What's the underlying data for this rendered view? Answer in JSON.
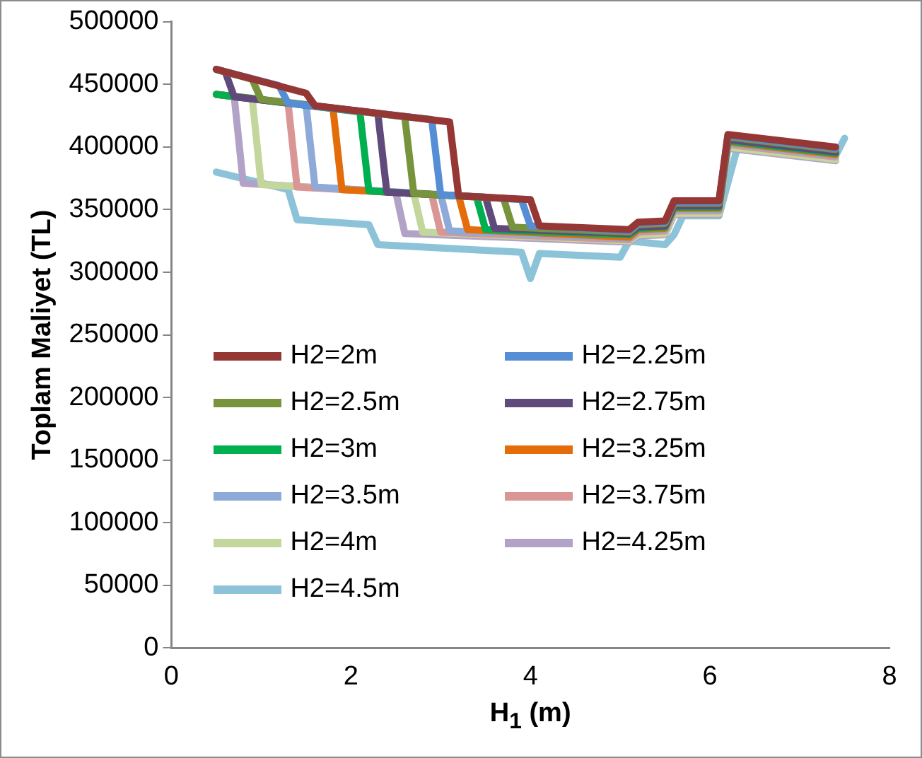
{
  "chart_data": {
    "type": "line",
    "xlabel": "H$_{1}$ (m)",
    "ylabel": "Toplam Maliyet (TL)",
    "xlim": [
      0,
      8
    ],
    "xticks": [
      0,
      2,
      4,
      6,
      8
    ],
    "ylim": [
      0,
      500000
    ],
    "yticks": [
      0,
      50000,
      100000,
      150000,
      200000,
      250000,
      300000,
      350000,
      400000,
      450000,
      500000
    ],
    "grid": false,
    "legend": "bottom left",
    "marker": "none",
    "line_style": "solid",
    "series": [
      {
        "name": "H2=2m",
        "color": "#953735",
        "x": [
          0.5,
          1.5,
          1.6,
          3.1,
          3.2,
          4.0,
          4.1,
          5.1,
          5.2,
          5.5,
          5.6,
          6.1,
          6.2,
          7.4
        ],
        "values": [
          462000,
          443000,
          433000,
          420000,
          361000,
          358000,
          337000,
          334000,
          340000,
          341000,
          357000,
          357000,
          410000,
          400000
        ]
      },
      {
        "name": "H2=2.25m",
        "color": "#558ed5",
        "x": [
          0.5,
          1.2,
          1.3,
          2.9,
          3.0,
          3.9,
          4.0,
          5.1,
          5.2,
          5.5,
          5.6,
          6.1,
          6.2,
          7.4
        ],
        "values": [
          462000,
          449000,
          435000,
          422000,
          362000,
          358000,
          337000,
          333000,
          339000,
          340000,
          356000,
          356000,
          409000,
          399000
        ]
      },
      {
        "name": "H2=2.5m",
        "color": "#77933c",
        "x": [
          0.5,
          0.9,
          1.0,
          2.6,
          2.7,
          3.7,
          3.8,
          5.1,
          5.2,
          5.5,
          5.6,
          6.1,
          6.2,
          7.4
        ],
        "values": [
          462000,
          454000,
          438000,
          424000,
          363000,
          359000,
          336000,
          332000,
          338000,
          339000,
          355000,
          355000,
          408000,
          398000
        ]
      },
      {
        "name": "H2=2.75m",
        "color": "#604a7b",
        "x": [
          0.5,
          0.6,
          0.7,
          2.3,
          2.4,
          3.5,
          3.6,
          5.1,
          5.2,
          5.5,
          5.6,
          6.1,
          6.2,
          7.4
        ],
        "values": [
          462000,
          460000,
          440000,
          427000,
          364000,
          360000,
          335000,
          331000,
          336000,
          337000,
          353000,
          353000,
          406000,
          396000
        ]
      },
      {
        "name": "H2=3m",
        "color": "#00b050",
        "x": [
          0.5,
          2.1,
          2.2,
          3.4,
          3.5,
          5.1,
          5.2,
          5.5,
          5.6,
          6.1,
          6.2,
          7.4
        ],
        "values": [
          442000,
          428000,
          365000,
          360000,
          334000,
          330000,
          335000,
          336000,
          352000,
          352000,
          405000,
          395000
        ]
      },
      {
        "name": "H2=3.25m",
        "color": "#e46c0a",
        "x": [
          0.5,
          1.8,
          1.9,
          3.2,
          3.3,
          5.1,
          5.2,
          5.5,
          5.6,
          6.1,
          6.2,
          7.4
        ],
        "values": [
          442000,
          431000,
          366000,
          361000,
          334000,
          328000,
          334000,
          335000,
          351000,
          351000,
          404000,
          394000
        ]
      },
      {
        "name": "H2=3.5m",
        "color": "#8eaad8",
        "x": [
          0.5,
          1.5,
          1.6,
          3.0,
          3.1,
          5.1,
          5.2,
          5.5,
          5.6,
          6.1,
          6.2,
          7.4
        ],
        "values": [
          442000,
          434000,
          368000,
          362000,
          333000,
          327000,
          333000,
          334000,
          350000,
          350000,
          403000,
          393000
        ]
      },
      {
        "name": "H2=3.75m",
        "color": "#d99694",
        "x": [
          0.5,
          1.3,
          1.4,
          2.9,
          3.0,
          5.1,
          5.2,
          5.5,
          5.6,
          6.1,
          6.2,
          7.4
        ],
        "values": [
          442000,
          435000,
          368000,
          362000,
          332000,
          326000,
          332000,
          333000,
          349000,
          349000,
          402000,
          392000
        ]
      },
      {
        "name": "H2=4m",
        "color": "#c3d69b",
        "x": [
          0.5,
          0.9,
          1.0,
          2.7,
          2.8,
          5.1,
          5.2,
          5.5,
          5.6,
          6.1,
          6.2,
          7.4
        ],
        "values": [
          442000,
          439000,
          370000,
          363000,
          332000,
          325000,
          330000,
          331000,
          347000,
          347000,
          400000,
          390000
        ]
      },
      {
        "name": "H2=4.25m",
        "color": "#b3a2c7",
        "x": [
          0.5,
          0.7,
          0.8,
          2.5,
          2.6,
          5.1,
          5.2,
          5.5,
          5.6,
          6.1,
          6.2,
          7.4
        ],
        "values": [
          442000,
          440000,
          371000,
          364000,
          331000,
          324000,
          329000,
          330000,
          346000,
          346000,
          399000,
          389000
        ]
      },
      {
        "name": "H2=4.5m",
        "color": "#8cc3d8",
        "x": [
          0.5,
          1.3,
          1.4,
          2.2,
          2.3,
          3.9,
          4.0,
          4.1,
          5.0,
          5.1,
          5.5,
          5.6,
          5.7,
          6.1,
          6.3,
          7.4,
          7.5
        ],
        "values": [
          380000,
          366000,
          342000,
          338000,
          322000,
          316000,
          295000,
          315000,
          312000,
          325000,
          322000,
          330000,
          345000,
          345000,
          398000,
          393000,
          407000
        ]
      }
    ]
  }
}
